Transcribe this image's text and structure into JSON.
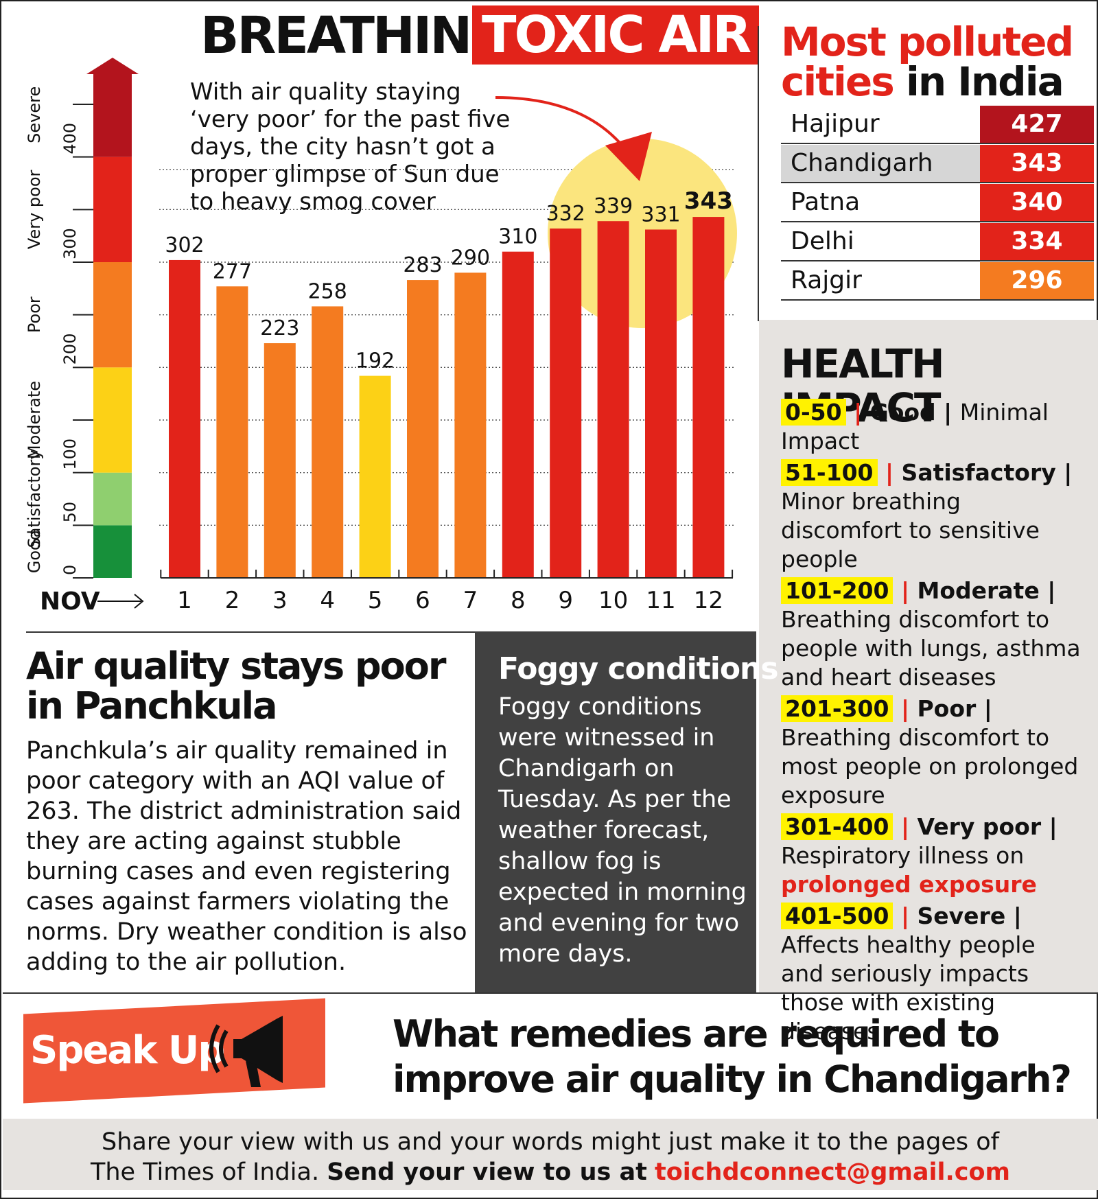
{
  "title": {
    "left": "BREATHING",
    "right": "TOXIC AIR"
  },
  "chart_note": "With air quality staying ‘very poor’ for the past five days, the city hasn’t got a proper glimpse of Sun due to heavy smog cover",
  "chart_data": {
    "type": "bar",
    "xlabel": "NOV",
    "categories": [
      "1",
      "2",
      "3",
      "4",
      "5",
      "6",
      "7",
      "8",
      "9",
      "10",
      "11",
      "12"
    ],
    "values": [
      302,
      277,
      223,
      258,
      192,
      283,
      290,
      310,
      332,
      339,
      331,
      343
    ],
    "ylim": [
      0,
      480
    ],
    "yticks": [
      0,
      50,
      100,
      200,
      300,
      400
    ],
    "scale_bands": [
      {
        "label": "Good",
        "from": 0,
        "to": 50,
        "color": "#17903a"
      },
      {
        "label": "Satisfactory",
        "from": 50,
        "to": 100,
        "color": "#8fcf6f"
      },
      {
        "label": "Moderate",
        "from": 100,
        "to": 200,
        "color": "#fcd116"
      },
      {
        "label": "Poor",
        "from": 200,
        "to": 300,
        "color": "#f47b20"
      },
      {
        "label": "Very poor",
        "from": 300,
        "to": 400,
        "color": "#e2231a"
      },
      {
        "label": "Severe",
        "from": 400,
        "to": 480,
        "color": "#b3141d"
      }
    ],
    "bar_colors": {
      "moderate": "#fcd116",
      "poor": "#f47b20",
      "very_poor": "#e2231a"
    },
    "highlight_color": "#fbe57e",
    "grid": true
  },
  "cities": {
    "title_red": "Most polluted cities",
    "title_black": "in India",
    "items": [
      {
        "name": "Hajipur",
        "value": "427",
        "color": "#b3141d"
      },
      {
        "name": "Chandigarh",
        "value": "343",
        "color": "#e2231a"
      },
      {
        "name": "Patna",
        "value": "340",
        "color": "#e2231a"
      },
      {
        "name": "Delhi",
        "value": "334",
        "color": "#e2231a"
      },
      {
        "name": "Rajgir",
        "value": "296",
        "color": "#f47b20"
      }
    ],
    "highlight_row_color": "#d6d6d6"
  },
  "health": {
    "title": "HEALTH IMPACT",
    "items": [
      {
        "range": "0-50",
        "category": "Good",
        "text": "Minimal Impact"
      },
      {
        "range": "51-100",
        "category": "Satisfactory",
        "text": "Minor breathing discomfort to sensitive people"
      },
      {
        "range": "101-200",
        "category": "Moderate",
        "text": "Breathing discomfort to people with lungs, asthma and heart diseases"
      },
      {
        "range": "201-300",
        "category": "Poor",
        "text": "Breathing discomfort to most people on prolonged exposure"
      },
      {
        "range": "301-400",
        "category": "Very poor",
        "text": "Respiratory illness on",
        "text_red": "prolonged exposure"
      },
      {
        "range": "401-500",
        "category": "Severe",
        "text": "Affects healthy people and seriously impacts those with existing diseases"
      }
    ]
  },
  "panchkula": {
    "title": "Air quality stays poor in Panchkula",
    "body": "Panchkula’s air quality remained in poor category with an AQI value of 263. The district administration said they are acting against stubble burning cases and even registering cases against farmers violating the norms. Dry weather condition is also adding to the air pollution."
  },
  "foggy": {
    "title": "Foggy conditions",
    "body": "Foggy conditions were witnessed in Chandigarh on Tuesday. As per the weather forecast, shallow fog is expected in morning and evening for two more days."
  },
  "speak_up": {
    "badge": "Speak Up",
    "question": "What remedies are required to improve air quality in Chandigarh?",
    "footer_line1": "Share your view with us and your words might just make it to the pages of",
    "footer_line2_plain": "The Times of India.",
    "footer_line2_bold": "Send your view to us at",
    "email": "toichdconnect@gmail.com"
  }
}
